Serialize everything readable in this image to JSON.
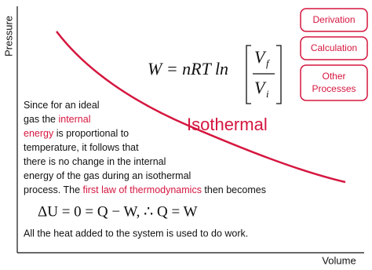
{
  "axes": {
    "y_label": "Pressure",
    "x_label": "Volume"
  },
  "buttons": [
    "Derivation",
    "Calculation",
    [
      "Other",
      "Processes"
    ]
  ],
  "curve_label": "Isothermal",
  "formula": {
    "lhs": "W = nRT ln",
    "numerator": {
      "symbol": "V",
      "subscript": "f"
    },
    "denominator": {
      "symbol": "V",
      "subscript": "i"
    }
  },
  "paragraph": [
    [
      {
        "text": "Since for an ideal"
      }
    ],
    [
      {
        "text": "gas the "
      },
      {
        "text": "internal",
        "link": true
      }
    ],
    [
      {
        "text": "energy",
        "link": true
      },
      {
        "text": " is proportional to"
      }
    ],
    [
      {
        "text": "temperature, it follows that"
      }
    ],
    [
      {
        "text": "there is no change in the internal"
      }
    ],
    [
      {
        "text": "energy of the gas during an isothermal"
      }
    ],
    [
      {
        "text": "process. The "
      },
      {
        "text": "first law of thermodynamics",
        "link": true
      },
      {
        "text": " then becomes"
      }
    ]
  ],
  "equation": "ΔU = 0 = Q − W,  ∴ Q = W",
  "conclusion": "All the heat added to the system is used to do work."
}
